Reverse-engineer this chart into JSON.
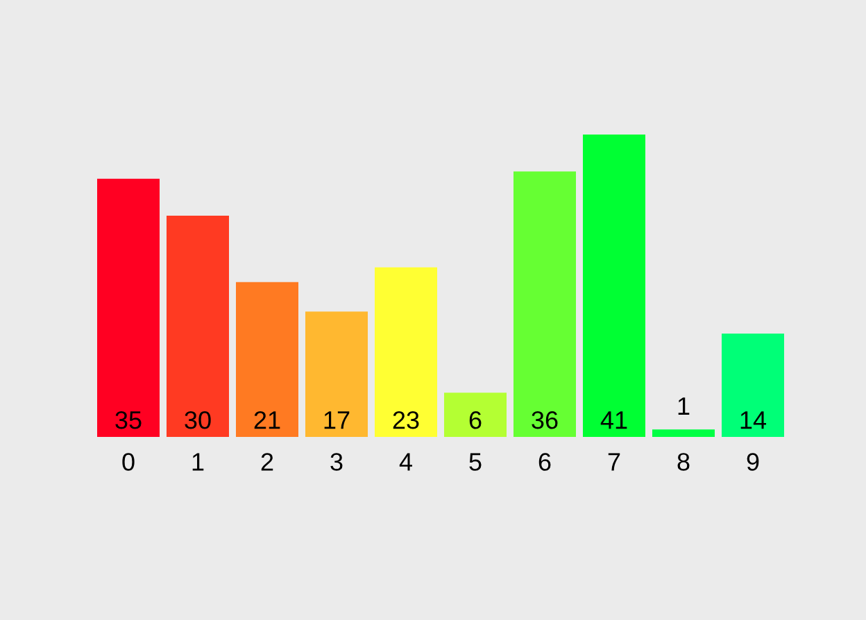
{
  "chart_data": {
    "type": "bar",
    "categories": [
      "0",
      "1",
      "2",
      "3",
      "4",
      "5",
      "6",
      "7",
      "8",
      "9"
    ],
    "values": [
      35,
      30,
      21,
      17,
      23,
      6,
      36,
      41,
      1,
      14
    ],
    "colors": [
      "#ff0022",
      "#ff3a22",
      "#ff7a22",
      "#ffb830",
      "#ffff33",
      "#b4ff33",
      "#66ff33",
      "#00ff33",
      "#00ff44",
      "#00ff77"
    ],
    "data_labels": true,
    "grid": false,
    "legend": false
  }
}
